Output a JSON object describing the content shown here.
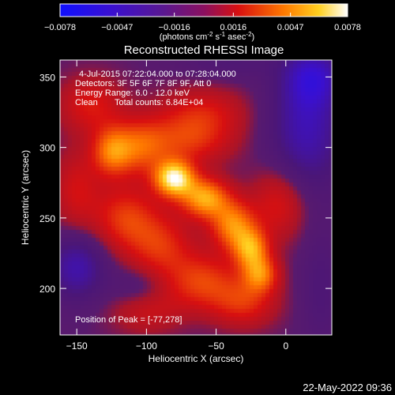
{
  "chart_data": {
    "type": "heatmap",
    "title": "Reconstructed RHESSI Image",
    "xlabel": "Heliocentric X (arcsec)",
    "ylabel": "Heliocentric Y (arcsec)",
    "xlim": [
      -162,
      33
    ],
    "ylim": [
      167,
      362
    ],
    "x_ticks": [
      -150,
      -100,
      -50,
      0
    ],
    "y_ticks": [
      200,
      250,
      300,
      350
    ],
    "colorbar": {
      "min": -0.0078,
      "max": 0.0078,
      "ticks": [
        "-0.0078",
        "-0.0047",
        "-0.0016",
        "0.0016",
        "0.0047",
        "0.0078"
      ],
      "tick_values": [
        -0.0078,
        -0.0047,
        -0.0016,
        0.0016,
        0.0047,
        0.0078
      ],
      "units_text": "(photons cm",
      "units_exp1": "-2",
      "units_mid": " s",
      "units_exp2": "-1",
      "units_mid2": " asec",
      "units_exp3": "-2",
      "units_end": ")"
    },
    "annotations": {
      "time_range": "4-Jul-2015 07:22:04.000 to 07:28:04.000",
      "detectors": "Detectors: 3F 5F 6F 7F 8F 9F, Att 0",
      "energy": "Energy Range: 6.0 - 12.0 keV",
      "clean": "Clean",
      "total_counts": "Total counts: 6.84E+04",
      "peak": "Position of Peak = [-77,278]"
    },
    "sources": [
      {
        "x": -80,
        "y": 278,
        "amp": 0.0078,
        "sx": 10,
        "sy": 9
      },
      {
        "x": -58,
        "y": 264,
        "amp": 0.0058,
        "sx": 12,
        "sy": 10
      },
      {
        "x": -38,
        "y": 245,
        "amp": 0.005,
        "sx": 11,
        "sy": 12
      },
      {
        "x": -25,
        "y": 228,
        "amp": 0.0052,
        "sx": 9,
        "sy": 10
      },
      {
        "x": -18,
        "y": 210,
        "amp": 0.0044,
        "sx": 9,
        "sy": 9
      },
      {
        "x": -125,
        "y": 297,
        "amp": 0.0042,
        "sx": 10,
        "sy": 12
      },
      {
        "x": -105,
        "y": 300,
        "amp": 0.0036,
        "sx": 14,
        "sy": 14
      },
      {
        "x": -70,
        "y": 305,
        "amp": 0.003,
        "sx": 22,
        "sy": 12
      },
      {
        "x": -115,
        "y": 250,
        "amp": 0.0033,
        "sx": 16,
        "sy": 16
      },
      {
        "x": -90,
        "y": 230,
        "amp": 0.003,
        "sx": 16,
        "sy": 16
      },
      {
        "x": -60,
        "y": 205,
        "amp": 0.0034,
        "sx": 18,
        "sy": 14
      },
      {
        "x": -30,
        "y": 190,
        "amp": 0.003,
        "sx": 16,
        "sy": 12
      },
      {
        "x": -140,
        "y": 330,
        "amp": 0.0026,
        "sx": 16,
        "sy": 14
      },
      {
        "x": -60,
        "y": 325,
        "amp": 0.0024,
        "sx": 22,
        "sy": 12
      },
      {
        "x": -150,
        "y": 270,
        "amp": 0.0022,
        "sx": 12,
        "sy": 20
      },
      {
        "x": -5,
        "y": 260,
        "amp": 0.0026,
        "sx": 14,
        "sy": 18
      },
      {
        "x": -100,
        "y": 185,
        "amp": 0.002,
        "sx": 18,
        "sy": 12
      }
    ],
    "background": [
      {
        "x": -150,
        "y": 215,
        "amp": -0.0032,
        "sx": 14,
        "sy": 16
      },
      {
        "x": -105,
        "y": 200,
        "amp": -0.0014,
        "sx": 14,
        "sy": 10
      },
      {
        "x": 15,
        "y": 315,
        "amp": -0.0034,
        "sx": 18,
        "sy": 32
      },
      {
        "x": 20,
        "y": 350,
        "amp": -0.003,
        "sx": 14,
        "sy": 14
      },
      {
        "x": 25,
        "y": 200,
        "amp": -0.0012,
        "sx": 10,
        "sy": 30
      },
      {
        "x": -40,
        "y": 360,
        "amp": -0.001,
        "sx": 24,
        "sy": 8
      }
    ],
    "peak": {
      "x": -77,
      "y": 278
    }
  },
  "timestamp": "22-May-2022 09:36"
}
